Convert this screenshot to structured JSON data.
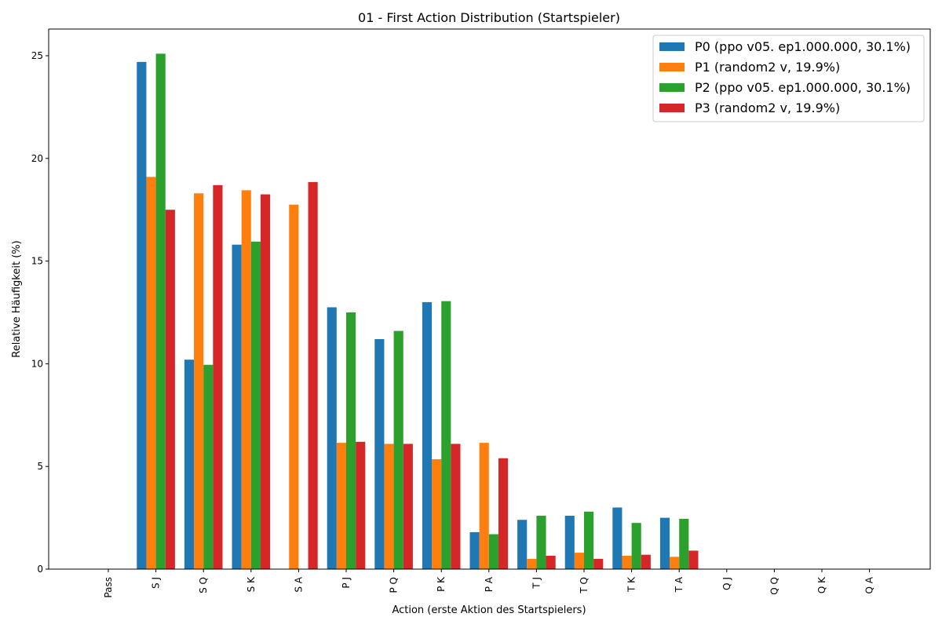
{
  "chart_data": {
    "type": "bar",
    "title": "01 - First Action Distribution (Startspieler)",
    "xlabel": "Action (erste Aktion des Startspielers)",
    "ylabel": "Relative Häufigkeit (%)",
    "ylim": [
      0,
      26.3
    ],
    "yticks": [
      0,
      5,
      10,
      15,
      20,
      25
    ],
    "grid": false,
    "legend_position": "top-right",
    "categories": [
      "Pass",
      "S J",
      "S Q",
      "S K",
      "S A",
      "P J",
      "P Q",
      "P K",
      "P A",
      "T J",
      "T Q",
      "T K",
      "T A",
      "Q J",
      "Q Q",
      "Q K",
      "Q A"
    ],
    "series": [
      {
        "name": "P0 (ppo v05. ep1.000.000, 30.1%)",
        "color": "#1f77b4",
        "values": [
          0,
          24.7,
          10.2,
          15.8,
          0,
          12.75,
          11.2,
          13.0,
          1.8,
          2.4,
          2.6,
          3.0,
          2.5,
          0,
          0,
          0,
          0
        ]
      },
      {
        "name": "P1 (random2 v, 19.9%)",
        "color": "#ff7f0e",
        "values": [
          0,
          19.1,
          18.3,
          18.45,
          17.75,
          6.15,
          6.1,
          5.35,
          6.15,
          0.5,
          0.8,
          0.65,
          0.6,
          0,
          0,
          0,
          0
        ]
      },
      {
        "name": "P2 (ppo v05. ep1.000.000, 30.1%)",
        "color": "#2ca02c",
        "values": [
          0,
          25.1,
          9.95,
          15.95,
          0,
          12.5,
          11.6,
          13.05,
          1.7,
          2.6,
          2.8,
          2.25,
          2.45,
          0,
          0,
          0,
          0
        ]
      },
      {
        "name": "P3 (random2 v, 19.9%)",
        "color": "#d62728",
        "values": [
          0,
          17.5,
          18.7,
          18.25,
          18.85,
          6.2,
          6.1,
          6.1,
          5.4,
          0.65,
          0.5,
          0.7,
          0.9,
          0,
          0,
          0,
          0
        ]
      }
    ]
  }
}
